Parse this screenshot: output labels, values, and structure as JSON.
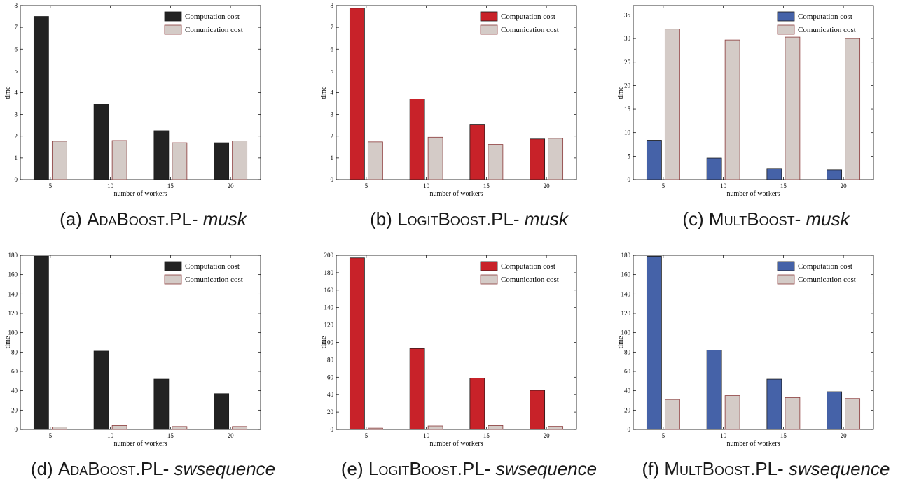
{
  "chart_data": [
    {
      "type": "bar",
      "categories": [
        "5",
        "10",
        "15",
        "20"
      ],
      "xlabel": "number of workers",
      "ylabel": "time",
      "ylim": [
        0,
        8
      ],
      "yticks": [
        "0",
        "1",
        "2",
        "3",
        "4",
        "5",
        "6",
        "7",
        "8"
      ],
      "grid": false,
      "legend": "top-right",
      "caption": {
        "prefix": "(a) ",
        "method": "AdaBoost",
        "suffix": ".PL- ",
        "dataset": "musk"
      },
      "series": [
        {
          "name": "Computation cost",
          "color": "#222222",
          "values": [
            7.5,
            3.48,
            2.25,
            1.7
          ]
        },
        {
          "name": "Comunication cost",
          "color": "#d4cbc7",
          "values": [
            1.77,
            1.8,
            1.7,
            1.78
          ]
        }
      ]
    },
    {
      "type": "bar",
      "categories": [
        "5",
        "10",
        "15",
        "20"
      ],
      "xlabel": "number of workers",
      "ylabel": "time",
      "ylim": [
        0,
        8
      ],
      "yticks": [
        "0",
        "1",
        "2",
        "3",
        "4",
        "5",
        "6",
        "7",
        "8"
      ],
      "grid": false,
      "legend": "top-right",
      "caption": {
        "prefix": "(b) ",
        "method": "LogitBoost",
        "suffix": ".PL- ",
        "dataset": "musk"
      },
      "series": [
        {
          "name": "Computation cost",
          "color": "#c82229",
          "values": [
            7.88,
            3.71,
            2.52,
            1.87
          ]
        },
        {
          "name": "Comunication cost",
          "color": "#d4cbc7",
          "values": [
            1.74,
            1.95,
            1.62,
            1.9
          ]
        }
      ]
    },
    {
      "type": "bar",
      "categories": [
        "5",
        "10",
        "15",
        "20"
      ],
      "xlabel": "number of workers",
      "ylabel": "time",
      "ylim": [
        0,
        37
      ],
      "yticks": [
        "0",
        "5",
        "10",
        "15",
        "20",
        "25",
        "30",
        "35"
      ],
      "grid": false,
      "legend": "top-right",
      "caption": {
        "prefix": "(c) ",
        "method": "MultBoost",
        "suffix": "- ",
        "dataset": "musk"
      },
      "series": [
        {
          "name": "Computation cost",
          "color": "#4562a8",
          "values": [
            8.4,
            4.6,
            2.4,
            2.1
          ]
        },
        {
          "name": "Comunication cost",
          "color": "#d4cbc7",
          "values": [
            32,
            29.7,
            30.3,
            30
          ]
        }
      ]
    },
    {
      "type": "bar",
      "categories": [
        "5",
        "10",
        "15",
        "20"
      ],
      "xlabel": "number of workers",
      "ylabel": "time",
      "ylim": [
        0,
        180
      ],
      "yticks": [
        "0",
        "20",
        "40",
        "60",
        "80",
        "100",
        "120",
        "140",
        "160",
        "180"
      ],
      "grid": false,
      "legend": "top-right",
      "caption": {
        "prefix": "(d) ",
        "method": "AdaBoost",
        "suffix": ".PL- ",
        "dataset": "swsequence"
      },
      "series": [
        {
          "name": "Computation cost",
          "color": "#222222",
          "values": [
            179,
            81,
            52,
            37
          ]
        },
        {
          "name": "Comunication cost",
          "color": "#d4cbc7",
          "values": [
            2.5,
            4,
            3,
            3
          ]
        }
      ]
    },
    {
      "type": "bar",
      "categories": [
        "5",
        "10",
        "15",
        "20"
      ],
      "xlabel": "number of workers",
      "ylabel": "time",
      "ylim": [
        0,
        200
      ],
      "yticks": [
        "0",
        "20",
        "40",
        "60",
        "80",
        "100",
        "120",
        "140",
        "160",
        "180",
        "200"
      ],
      "grid": false,
      "legend": "top-right",
      "caption": {
        "prefix": "(e) ",
        "method": "LogitBoost",
        "suffix": ".PL- ",
        "dataset": "swsequence"
      },
      "series": [
        {
          "name": "Computation cost",
          "color": "#c82229",
          "values": [
            197,
            93,
            59,
            45
          ]
        },
        {
          "name": "Comunication cost",
          "color": "#d4cbc7",
          "values": [
            1.5,
            4,
            4.5,
            3.5
          ]
        }
      ]
    },
    {
      "type": "bar",
      "categories": [
        "5",
        "10",
        "15",
        "20"
      ],
      "xlabel": "number of workers",
      "ylabel": "time",
      "ylim": [
        0,
        180
      ],
      "yticks": [
        "0",
        "20",
        "40",
        "60",
        "80",
        "100",
        "120",
        "140",
        "160",
        "180"
      ],
      "grid": false,
      "legend": "top-right",
      "caption": {
        "prefix": "(f) ",
        "method": "MultBoost",
        "suffix": ".PL- ",
        "dataset": "swsequence"
      },
      "series": [
        {
          "name": "Computation cost",
          "color": "#4562a8",
          "values": [
            179,
            82,
            52,
            39
          ]
        },
        {
          "name": "Comunication cost",
          "color": "#d4cbc7",
          "values": [
            31,
            35,
            33,
            32
          ]
        }
      ]
    }
  ]
}
